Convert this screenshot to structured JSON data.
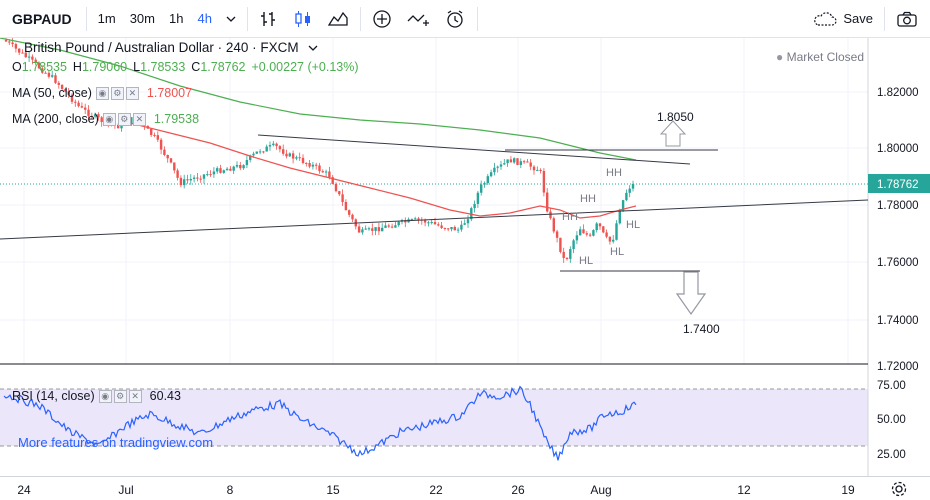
{
  "toolbar": {
    "symbol": "GBPAUD",
    "intervals": [
      "1m",
      "30m",
      "1h",
      "4h"
    ],
    "active_interval": "4h",
    "save_label": "Save"
  },
  "legend": {
    "title": "British Pound / Australian Dollar · 240 · FXCM",
    "ohlc": {
      "o_label": "O",
      "o": "1.78535",
      "h_label": "H",
      "h": "1.79060",
      "l_label": "L",
      "l": "1.78533",
      "c_label": "C",
      "c": "1.78762",
      "change": "+0.00227 (+0.13%)"
    },
    "ma50": {
      "label": "MA (50, close)",
      "value": "1.78007",
      "color": "#ef5350"
    },
    "ma200": {
      "label": "MA (200, close)",
      "value": "1.79538",
      "color": "#4caf50"
    },
    "rsi": {
      "label": "RSI (14, close)",
      "value": "60.43"
    }
  },
  "status": {
    "market": "Market Closed"
  },
  "price_axis": {
    "labels": [
      "1.82000",
      "1.80000",
      "1.78000",
      "1.76000",
      "1.74000",
      "1.72000"
    ],
    "current": "1.78762"
  },
  "rsi_axis": {
    "labels": [
      "75.00",
      "50.00",
      "25.00"
    ]
  },
  "time_axis": {
    "labels": [
      "24",
      "Jul",
      "8",
      "15",
      "22",
      "26",
      "Aug",
      "12",
      "19"
    ]
  },
  "annotations": {
    "hh1": "HH",
    "hh2": "HH",
    "hh3": "HH",
    "hl1": "HL",
    "hl2": "HL",
    "hl3": "HL",
    "target_up": "1.8050",
    "target_down": "1.7400"
  },
  "promo": "More features on tradingview.com",
  "colors": {
    "up": "#26a69a",
    "down": "#ef5350",
    "candle_up": "#4caf50",
    "ma50": "#ef5350",
    "ma200": "#4caf50",
    "rsi": "#2962ff",
    "rsi_band": "#e1d7fa"
  }
}
